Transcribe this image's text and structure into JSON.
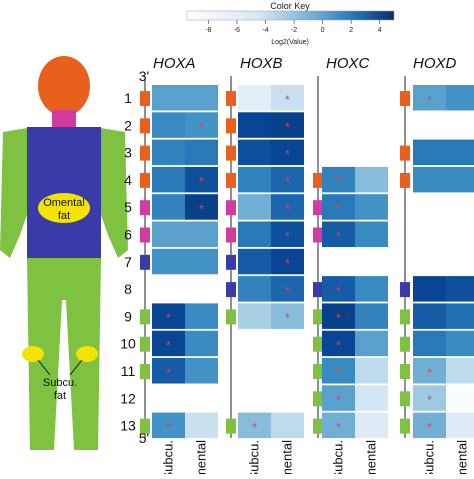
{
  "color_key": {
    "title": "Color Key",
    "axis_label": "Log2(Value)",
    "ticks": [
      -8,
      -6,
      -4,
      -2,
      0,
      2,
      4
    ],
    "min": -9.5,
    "max": 5,
    "low_color": "#ffffff",
    "high_color": "#08306b"
  },
  "body": {
    "omental_label_1": "Omental",
    "omental_label_2": "fat",
    "subcu_label_1": "Subcu.",
    "subcu_label_2": "fat",
    "colors": {
      "head": "#e8601c",
      "neck": "#d23ca0",
      "torso": "#3a3aa8",
      "limbs": "#7fc241",
      "fat": "#f3e400"
    }
  },
  "axis": {
    "top_marker": "3'",
    "bottom_marker": "5'",
    "rows": [
      "1",
      "2",
      "3",
      "4",
      "5",
      "6",
      "7",
      "8",
      "9",
      "10",
      "11",
      "12",
      "13"
    ],
    "col_labels": [
      "Subcu.",
      "Omental"
    ]
  },
  "gene_colors": {
    "orange": "#e8601c",
    "magenta": "#d23ca0",
    "blue": "#3a3aa8",
    "green": "#7fc241"
  },
  "star_color": "#e0405a",
  "chart_data": {
    "type": "heatmap",
    "columns": [
      "Subcu.",
      "Omental"
    ],
    "scale": "Log2(Value)",
    "clusters": [
      {
        "name": "HOXA",
        "genes": [
          {
            "row": 1,
            "color": "orange",
            "values": [
              -1.5,
              -1.5
            ],
            "star": [
              false,
              false
            ]
          },
          {
            "row": 2,
            "color": "orange",
            "values": [
              -0.5,
              -1.0
            ],
            "star": [
              false,
              true
            ]
          },
          {
            "row": 3,
            "color": "orange",
            "values": [
              0.0,
              0.5
            ],
            "star": [
              false,
              false
            ]
          },
          {
            "row": 4,
            "color": "orange",
            "values": [
              0.5,
              2.5
            ],
            "star": [
              false,
              true
            ]
          },
          {
            "row": 5,
            "color": "magenta",
            "values": [
              0.0,
              3.5
            ],
            "star": [
              false,
              true
            ]
          },
          {
            "row": 6,
            "color": "magenta",
            "values": [
              -1.5,
              -1.5
            ],
            "star": [
              false,
              false
            ]
          },
          {
            "row": 7,
            "color": "blue",
            "values": [
              -1.0,
              -1.0
            ],
            "star": [
              false,
              false
            ]
          },
          {
            "row": 8,
            "color": null,
            "values": null,
            "star": null
          },
          {
            "row": 9,
            "color": "green",
            "values": [
              3.0,
              -0.5
            ],
            "star": [
              true,
              false
            ]
          },
          {
            "row": 10,
            "color": "green",
            "values": [
              3.0,
              -0.5
            ],
            "star": [
              true,
              false
            ]
          },
          {
            "row": 11,
            "color": "green",
            "values": [
              2.0,
              -1.0
            ],
            "star": [
              true,
              false
            ]
          },
          {
            "row": 12,
            "color": null,
            "values": null,
            "star": null
          },
          {
            "row": 13,
            "color": "green",
            "values": [
              -1.0,
              -5.0
            ],
            "star": [
              true,
              false
            ]
          }
        ]
      },
      {
        "name": "HOXB",
        "genes": [
          {
            "row": 1,
            "color": "orange",
            "values": [
              -6.5,
              -5.0
            ],
            "star": [
              false,
              true
            ]
          },
          {
            "row": 2,
            "color": "orange",
            "values": [
              3.0,
              3.5
            ],
            "star": [
              false,
              true
            ]
          },
          {
            "row": 3,
            "color": "orange",
            "values": [
              2.5,
              3.0
            ],
            "star": [
              false,
              true
            ]
          },
          {
            "row": 4,
            "color": "orange",
            "values": [
              0.0,
              1.5
            ],
            "star": [
              false,
              true
            ]
          },
          {
            "row": 5,
            "color": "magenta",
            "values": [
              -2.0,
              1.5
            ],
            "star": [
              false,
              true
            ]
          },
          {
            "row": 6,
            "color": "magenta",
            "values": [
              0.5,
              2.5
            ],
            "star": [
              false,
              true
            ]
          },
          {
            "row": 7,
            "color": "blue",
            "values": [
              2.0,
              3.0
            ],
            "star": [
              false,
              true
            ]
          },
          {
            "row": 8,
            "color": "blue",
            "values": [
              0.0,
              1.5
            ],
            "star": [
              false,
              true
            ]
          },
          {
            "row": 9,
            "color": "green",
            "values": [
              -3.5,
              -2.5
            ],
            "star": [
              false,
              true
            ]
          },
          {
            "row": 10,
            "color": null,
            "values": null,
            "star": null
          },
          {
            "row": 11,
            "color": null,
            "values": null,
            "star": null
          },
          {
            "row": 12,
            "color": null,
            "values": null,
            "star": null
          },
          {
            "row": 13,
            "color": "green",
            "values": [
              -2.5,
              -4.5
            ],
            "star": [
              true,
              false
            ]
          }
        ]
      },
      {
        "name": "HOXC",
        "genes": [
          {
            "row": 1,
            "color": null,
            "values": null,
            "star": null
          },
          {
            "row": 2,
            "color": null,
            "values": null,
            "star": null
          },
          {
            "row": 3,
            "color": null,
            "values": null,
            "star": null
          },
          {
            "row": 4,
            "color": "orange",
            "values": [
              0.0,
              -2.5
            ],
            "star": [
              true,
              false
            ]
          },
          {
            "row": 5,
            "color": "magenta",
            "values": [
              0.5,
              -1.0
            ],
            "star": [
              true,
              false
            ]
          },
          {
            "row": 6,
            "color": "magenta",
            "values": [
              2.0,
              -0.5
            ],
            "star": [
              true,
              false
            ]
          },
          {
            "row": 7,
            "color": null,
            "values": null,
            "star": null
          },
          {
            "row": 8,
            "color": "blue",
            "values": [
              2.0,
              -0.5
            ],
            "star": [
              true,
              false
            ]
          },
          {
            "row": 9,
            "color": "green",
            "values": [
              3.5,
              0.0
            ],
            "star": [
              true,
              false
            ]
          },
          {
            "row": 10,
            "color": "green",
            "values": [
              3.0,
              -1.5
            ],
            "star": [
              true,
              false
            ]
          },
          {
            "row": 11,
            "color": "green",
            "values": [
              -0.5,
              -4.5
            ],
            "star": [
              true,
              false
            ]
          },
          {
            "row": 12,
            "color": "green",
            "values": [
              -1.5,
              -5.5
            ],
            "star": [
              true,
              false
            ]
          },
          {
            "row": 13,
            "color": "green",
            "values": [
              -2.0,
              -6.0
            ],
            "star": [
              true,
              false
            ]
          }
        ]
      },
      {
        "name": "HOXD",
        "genes": [
          {
            "row": 1,
            "color": "orange",
            "values": [
              -1.5,
              -1.0
            ],
            "star": [
              true,
              false
            ]
          },
          {
            "row": 2,
            "color": null,
            "values": null,
            "star": null
          },
          {
            "row": 3,
            "color": "orange",
            "values": [
              0.5,
              0.5
            ],
            "star": [
              false,
              false
            ]
          },
          {
            "row": 4,
            "color": "orange",
            "values": [
              -0.5,
              -0.5
            ],
            "star": [
              false,
              false
            ]
          },
          {
            "row": 5,
            "color": null,
            "values": null,
            "star": null
          },
          {
            "row": 6,
            "color": null,
            "values": null,
            "star": null
          },
          {
            "row": 7,
            "color": null,
            "values": null,
            "star": null
          },
          {
            "row": 8,
            "color": "blue",
            "values": [
              3.0,
              2.5
            ],
            "star": [
              false,
              false
            ]
          },
          {
            "row": 9,
            "color": "green",
            "values": [
              2.0,
              1.0
            ],
            "star": [
              false,
              false
            ]
          },
          {
            "row": 10,
            "color": "green",
            "values": [
              0.5,
              -0.5
            ],
            "star": [
              false,
              false
            ]
          },
          {
            "row": 11,
            "color": "green",
            "values": [
              -2.0,
              -4.5
            ],
            "star": [
              true,
              false
            ]
          },
          {
            "row": 12,
            "color": "green",
            "values": [
              -3.0,
              -9.0
            ],
            "star": [
              true,
              false
            ]
          },
          {
            "row": 13,
            "color": "green",
            "values": [
              -2.0,
              -6.0
            ],
            "star": [
              true,
              false
            ]
          }
        ]
      }
    ]
  }
}
